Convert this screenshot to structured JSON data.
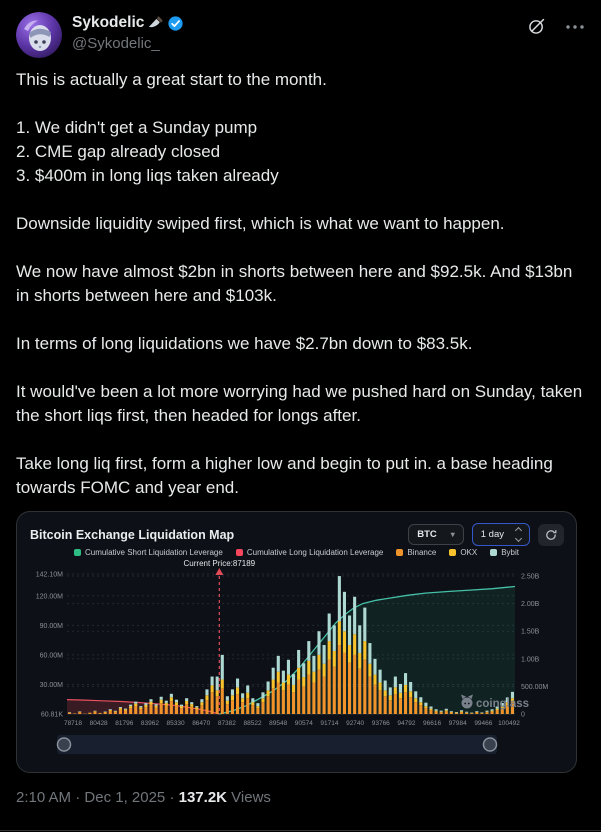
{
  "user": {
    "name": "Sykodelic",
    "name_emoji": "🔪",
    "handle": "@Sykodelic_",
    "verified": true
  },
  "icons": {
    "verified": "blue-check-badge",
    "knife": "kitchen-knife-emoji",
    "grok": "slashed-circle",
    "more": "ellipsis-dots",
    "refresh": "circular-arrow",
    "watermark": "coinglass-pig"
  },
  "tweet": {
    "text": "This is actually a great start to the month.\n\n1. We didn't get a Sunday pump\n2. CME gap already closed\n3. $400m in long liqs taken already\n\nDownside liquidity swiped first, which is what we want to happen.\n\nWe now have almost $2bn in shorts between here and $92.5k. And $13bn in shorts between here and $103k.\n\nIn terms of long liquidations we have $2.7bn down to $83.5k.\n\nIt would've been a lot more worrying had we pushed hard on Sunday, taken the short liqs first, then headed for longs after.\n\nTake long liq first, form a higher low and begin to put in. a base heading towards FOMC and year end."
  },
  "footer": {
    "time": "2:10 AM",
    "sep": "·",
    "date": "Dec 1, 2025",
    "views_count": "137.2K",
    "views_label": "Views"
  },
  "chart_data": {
    "type": "bar",
    "title": "Bitcoin Exchange Liquidation Map",
    "controls": {
      "symbol": "BTC",
      "interval": "1 day"
    },
    "watermark": "coinglass",
    "current_price": 87189,
    "current_price_label": "Current Price:87189",
    "current_price_frac": 0.34,
    "legend": [
      {
        "label": "Cumulative Short Liquidation Leverage",
        "color": "#2ebd85"
      },
      {
        "label": "Cumulative Long Liquidation Leverage",
        "color": "#f6465d"
      },
      {
        "label": "Binance",
        "color": "#f0932b"
      },
      {
        "label": "OKX",
        "color": "#f8c32c"
      },
      {
        "label": "Bybit",
        "color": "#aed9d3"
      }
    ],
    "colors": {
      "binance": "#f0932b",
      "okx": "#f8c32c",
      "bybit": "#aed9d3",
      "short": "#46c1a8",
      "long": "#e8505f"
    },
    "left_axis": {
      "labels": [
        "142.10M",
        "120.00M",
        "90.00M",
        "60.00M",
        "30.00M",
        "60.81K"
      ],
      "values_m": [
        142.1,
        120,
        90,
        60,
        30,
        0
      ],
      "max_m": 142.1
    },
    "right_axis": {
      "labels": [
        "2.50B",
        "2.00B",
        "1.50B",
        "1.00B",
        "500.00M",
        "0"
      ],
      "values_m": [
        2500,
        2000,
        1500,
        1000,
        500,
        0
      ],
      "max_m": 2500
    },
    "x_tick_labels": [
      "78718",
      "80428",
      "81796",
      "83962",
      "85330",
      "86470",
      "87382",
      "88522",
      "89548",
      "90574",
      "91714",
      "92740",
      "93766",
      "94792",
      "96616",
      "97984",
      "99466",
      "100492"
    ],
    "stack_order": [
      "Binance",
      "OKX",
      "Bybit"
    ],
    "bars_m": [
      [
        1.2,
        0.4,
        0.3
      ],
      [
        0.5,
        0.2,
        0.1
      ],
      [
        1.8,
        0.5,
        0.4
      ],
      [
        0.3,
        0.1,
        0.1
      ],
      [
        1,
        0.3,
        0.2
      ],
      [
        2.2,
        0.7,
        0.4
      ],
      [
        0.8,
        0.3,
        0.2
      ],
      [
        1.5,
        0.5,
        0.5
      ],
      [
        3,
        1,
        0.8
      ],
      [
        2,
        0.8,
        0.5
      ],
      [
        4.5,
        1.5,
        1
      ],
      [
        3.5,
        1.2,
        0.8
      ],
      [
        6,
        2,
        1.5
      ],
      [
        8,
        2.5,
        2
      ],
      [
        5,
        1.8,
        1.2
      ],
      [
        7,
        2.2,
        1.8
      ],
      [
        9.5,
        3,
        2.5
      ],
      [
        6.5,
        2,
        1.5
      ],
      [
        11,
        3.5,
        3
      ],
      [
        8.5,
        2.8,
        2.2
      ],
      [
        13,
        4,
        3.5
      ],
      [
        9,
        3,
        2.5
      ],
      [
        6,
        2,
        1.5
      ],
      [
        10,
        3.2,
        2.8
      ],
      [
        7.5,
        2.5,
        2
      ],
      [
        5,
        1.8,
        1.2
      ],
      [
        9,
        3,
        3
      ],
      [
        14,
        5,
        6
      ],
      [
        22,
        7,
        9
      ],
      [
        18,
        6,
        14
      ],
      [
        26,
        9,
        25
      ],
      [
        10,
        3.5,
        4.5
      ],
      [
        14,
        5,
        6
      ],
      [
        20,
        7,
        9
      ],
      [
        12,
        4,
        5
      ],
      [
        16,
        5.5,
        7.5
      ],
      [
        9,
        3,
        4
      ],
      [
        6,
        2,
        3
      ],
      [
        12,
        4,
        6
      ],
      [
        18,
        6,
        9
      ],
      [
        26,
        9,
        12
      ],
      [
        32,
        11,
        16
      ],
      [
        24,
        8,
        12
      ],
      [
        30,
        10,
        15
      ],
      [
        22,
        7.5,
        11
      ],
      [
        35,
        12,
        18
      ],
      [
        28,
        9.5,
        14
      ],
      [
        40,
        14,
        20
      ],
      [
        32,
        11,
        16
      ],
      [
        45,
        15,
        24
      ],
      [
        38,
        13,
        19
      ],
      [
        55,
        19,
        28
      ],
      [
        48,
        16,
        26
      ],
      [
        70,
        24,
        46
      ],
      [
        62,
        22,
        40
      ],
      [
        52,
        18,
        30
      ],
      [
        60,
        21,
        38
      ],
      [
        46,
        16,
        28
      ],
      [
        55,
        19,
        34
      ],
      [
        38,
        13,
        21
      ],
      [
        30,
        10,
        16
      ],
      [
        24,
        8,
        13
      ],
      [
        18,
        6,
        10
      ],
      [
        14,
        5,
        8
      ],
      [
        20,
        7,
        11
      ],
      [
        16,
        5.5,
        9
      ],
      [
        22,
        7.5,
        12
      ],
      [
        17,
        6,
        9.5
      ],
      [
        12,
        4,
        7
      ],
      [
        9,
        3,
        5
      ],
      [
        6,
        2,
        3.5
      ],
      [
        4,
        1.4,
        2.2
      ],
      [
        2.5,
        0.9,
        1.4
      ],
      [
        1.8,
        0.6,
        1
      ],
      [
        2.8,
        1,
        1.5
      ],
      [
        1.5,
        0.5,
        0.8
      ],
      [
        1,
        0.4,
        0.6
      ],
      [
        2,
        0.7,
        1.1
      ],
      [
        1.2,
        0.4,
        0.7
      ],
      [
        0.8,
        0.3,
        0.4
      ],
      [
        1.5,
        0.5,
        0.8
      ],
      [
        0.9,
        0.3,
        0.5
      ],
      [
        1.8,
        0.6,
        1
      ],
      [
        2.5,
        0.9,
        1.4
      ],
      [
        4,
        1.4,
        2.2
      ],
      [
        6,
        2,
        3.2
      ],
      [
        9,
        3,
        4.8
      ],
      [
        12,
        4,
        6.5
      ]
    ],
    "cum_short_line": {
      "axis": "right",
      "points": [
        [
          0.34,
          0
        ],
        [
          0.37,
          60
        ],
        [
          0.4,
          150
        ],
        [
          0.43,
          280
        ],
        [
          0.46,
          420
        ],
        [
          0.49,
          600
        ],
        [
          0.52,
          850
        ],
        [
          0.55,
          1150
        ],
        [
          0.58,
          1450
        ],
        [
          0.6,
          1650
        ],
        [
          0.62,
          1800
        ],
        [
          0.64,
          1920
        ],
        [
          0.66,
          2000
        ],
        [
          0.69,
          2060
        ],
        [
          0.72,
          2100
        ],
        [
          0.76,
          2150
        ],
        [
          0.8,
          2190
        ],
        [
          0.85,
          2220
        ],
        [
          0.9,
          2245
        ],
        [
          0.95,
          2270
        ],
        [
          1.0,
          2310
        ]
      ]
    },
    "cum_long_line": {
      "axis": "right",
      "points": [
        [
          0,
          260
        ],
        [
          0.04,
          252
        ],
        [
          0.08,
          240
        ],
        [
          0.12,
          226
        ],
        [
          0.16,
          208
        ],
        [
          0.2,
          185
        ],
        [
          0.24,
          155
        ],
        [
          0.27,
          120
        ],
        [
          0.3,
          80
        ],
        [
          0.32,
          45
        ],
        [
          0.34,
          0
        ]
      ]
    }
  }
}
